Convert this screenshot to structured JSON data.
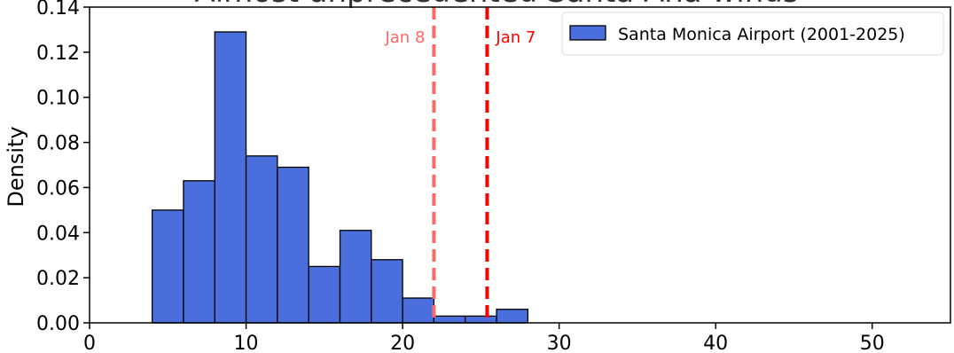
{
  "chart_data": {
    "type": "bar",
    "title": "Almost unprecedented Santa Ana winds",
    "xlabel": "",
    "ylabel": "Density",
    "xlim": [
      0,
      55
    ],
    "ylim": [
      0,
      0.14
    ],
    "x_ticks": [
      0,
      10,
      20,
      30,
      40,
      50
    ],
    "y_ticks": [
      "0.00",
      "0.02",
      "0.04",
      "0.06",
      "0.08",
      "0.10",
      "0.12",
      "0.14"
    ],
    "bin_edges": [
      4,
      6,
      8,
      10,
      12,
      14,
      16,
      18,
      20,
      22,
      24,
      26,
      28
    ],
    "series": [
      {
        "name": "Santa Monica Airport (2001-2025)",
        "values": [
          0.05,
          0.063,
          0.129,
          0.074,
          0.069,
          0.025,
          0.041,
          0.028,
          0.011,
          0.003,
          0.003,
          0.006
        ],
        "color": "#4a6fdc"
      }
    ],
    "annotations": [
      {
        "label": "Jan 8",
        "x": 22,
        "color": "#ff6666",
        "style": "dashed"
      },
      {
        "label": "Jan 7",
        "x": 25.4,
        "color": "#ff0000",
        "style": "dashed"
      }
    ],
    "grid": false,
    "legend_position": "top-right"
  }
}
